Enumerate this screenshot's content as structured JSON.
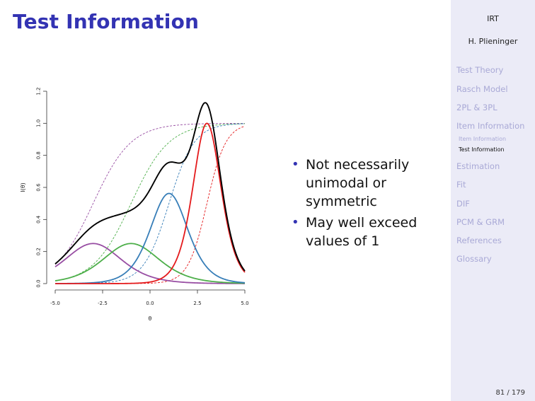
{
  "slide": {
    "title": "Test Information",
    "page_number": "81 / 179",
    "bullets": [
      "Not necessarily unimodal or symmetric",
      "May well exceed values of 1"
    ]
  },
  "sidebar": {
    "header": "IRT",
    "author": "H. Plieninger",
    "items": [
      {
        "label": "Test Theory"
      },
      {
        "label": "Rasch Model"
      },
      {
        "label": "2PL & 3PL"
      },
      {
        "label": "Item Information"
      },
      {
        "label": "Estimation"
      },
      {
        "label": "Fit"
      },
      {
        "label": "DIF"
      },
      {
        "label": "PCM & GRM"
      },
      {
        "label": "References"
      },
      {
        "label": "Glossary"
      }
    ],
    "subitems": [
      {
        "label": "Item Information",
        "active": false
      },
      {
        "label": "Test Information",
        "active": true
      }
    ],
    "colors": {
      "background": "#ebebf7",
      "inactive": "#a9a9d6",
      "title": "#3333b3"
    }
  },
  "chart_data": {
    "type": "line",
    "title": "",
    "xlabel": "θ",
    "ylabel": "I(θ)",
    "xlim": [
      -5,
      5
    ],
    "ylim": [
      0,
      1.2
    ],
    "xticks": [
      "-5.0",
      "-2.5",
      "0.0",
      "2.5",
      "5.0"
    ],
    "yticks": [
      "0.0",
      "0.2",
      "0.4",
      "0.6",
      "0.8",
      "1.0",
      "1.2"
    ],
    "grid": false,
    "legend": "none",
    "item_info": [
      {
        "color": "#984ea3",
        "a": 1.0,
        "b": -3.0,
        "peak": 0.25
      },
      {
        "color": "#4daf4a",
        "a": 1.0,
        "b": -1.0,
        "peak": 0.25
      },
      {
        "color": "#377eb8",
        "a": 1.5,
        "b": 1.0,
        "peak": 0.5625
      },
      {
        "color": "#e41a1c",
        "a": 2.0,
        "b": 3.0,
        "peak": 1.0
      }
    ],
    "test_info": {
      "color": "#000000",
      "peak": 1.13
    }
  }
}
